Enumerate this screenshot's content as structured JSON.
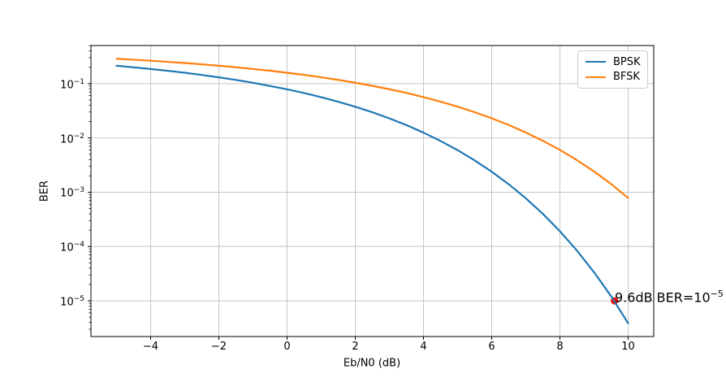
{
  "chart_data": {
    "type": "line",
    "title": "",
    "xlabel": "Eb/N0 (dB)",
    "ylabel": "BER",
    "xlim": [
      -5.75,
      10.75
    ],
    "yscale": "log",
    "ylim": [
      2.2e-06,
      0.503
    ],
    "xticks": [
      -4,
      -2,
      0,
      2,
      4,
      6,
      8,
      10
    ],
    "ytick_exponents": [
      -1,
      -2,
      -3,
      -4,
      -5
    ],
    "grid": true,
    "grid_color": "#c6c6c6",
    "spine_color": "#000000",
    "x": [
      -5,
      -4.5,
      -4,
      -3.5,
      -3,
      -2.5,
      -2,
      -1.5,
      -1,
      -0.5,
      0,
      0.5,
      1,
      1.5,
      2,
      2.5,
      3,
      3.5,
      4,
      4.5,
      5,
      5.5,
      6,
      6.5,
      7,
      7.5,
      8,
      8.5,
      9,
      9.5,
      10
    ],
    "series": [
      {
        "name": "BPSK",
        "color": "#1f77b4",
        "values": [
          0.2133,
          0.1998,
          0.1861,
          0.1723,
          0.1584,
          0.1445,
          0.1306,
          0.117,
          0.1038,
          0.0904,
          0.0786,
          0.0671,
          0.0563,
          0.0464,
          0.0375,
          0.0297,
          0.0229,
          0.0172,
          0.0125,
          0.00879,
          0.00595,
          0.00386,
          0.00239,
          0.0014,
          0.000773,
          0.0004,
          0.000191,
          8.4e-05,
          3.36e-05,
          1.22e-05,
          3.87e-06
        ]
      },
      {
        "name": "BFSK",
        "color": "#ff7f0e",
        "values": [
          0.287,
          0.2757,
          0.264,
          0.2519,
          0.2395,
          0.2266,
          0.2135,
          0.2001,
          0.1864,
          0.1726,
          0.1587,
          0.1447,
          0.1309,
          0.1173,
          0.104,
          0.0909,
          0.0789,
          0.0673,
          0.0565,
          0.0466,
          0.0377,
          0.0298,
          0.023,
          0.0173,
          0.0126,
          0.00885,
          0.00601,
          0.0039,
          0.00241,
          0.00142,
          0.000783
        ]
      }
    ],
    "legend": {
      "position": "upper-right",
      "entries": [
        "BPSK",
        "BFSK"
      ]
    },
    "annotation": {
      "x_db": 9.6,
      "ber": 1e-05,
      "label_text": "9.6dB BER=10⁻⁵",
      "label_base": "9.6dB BER=10",
      "label_exponent": "−5",
      "marker": "circle",
      "marker_color": "#ff0000"
    }
  }
}
